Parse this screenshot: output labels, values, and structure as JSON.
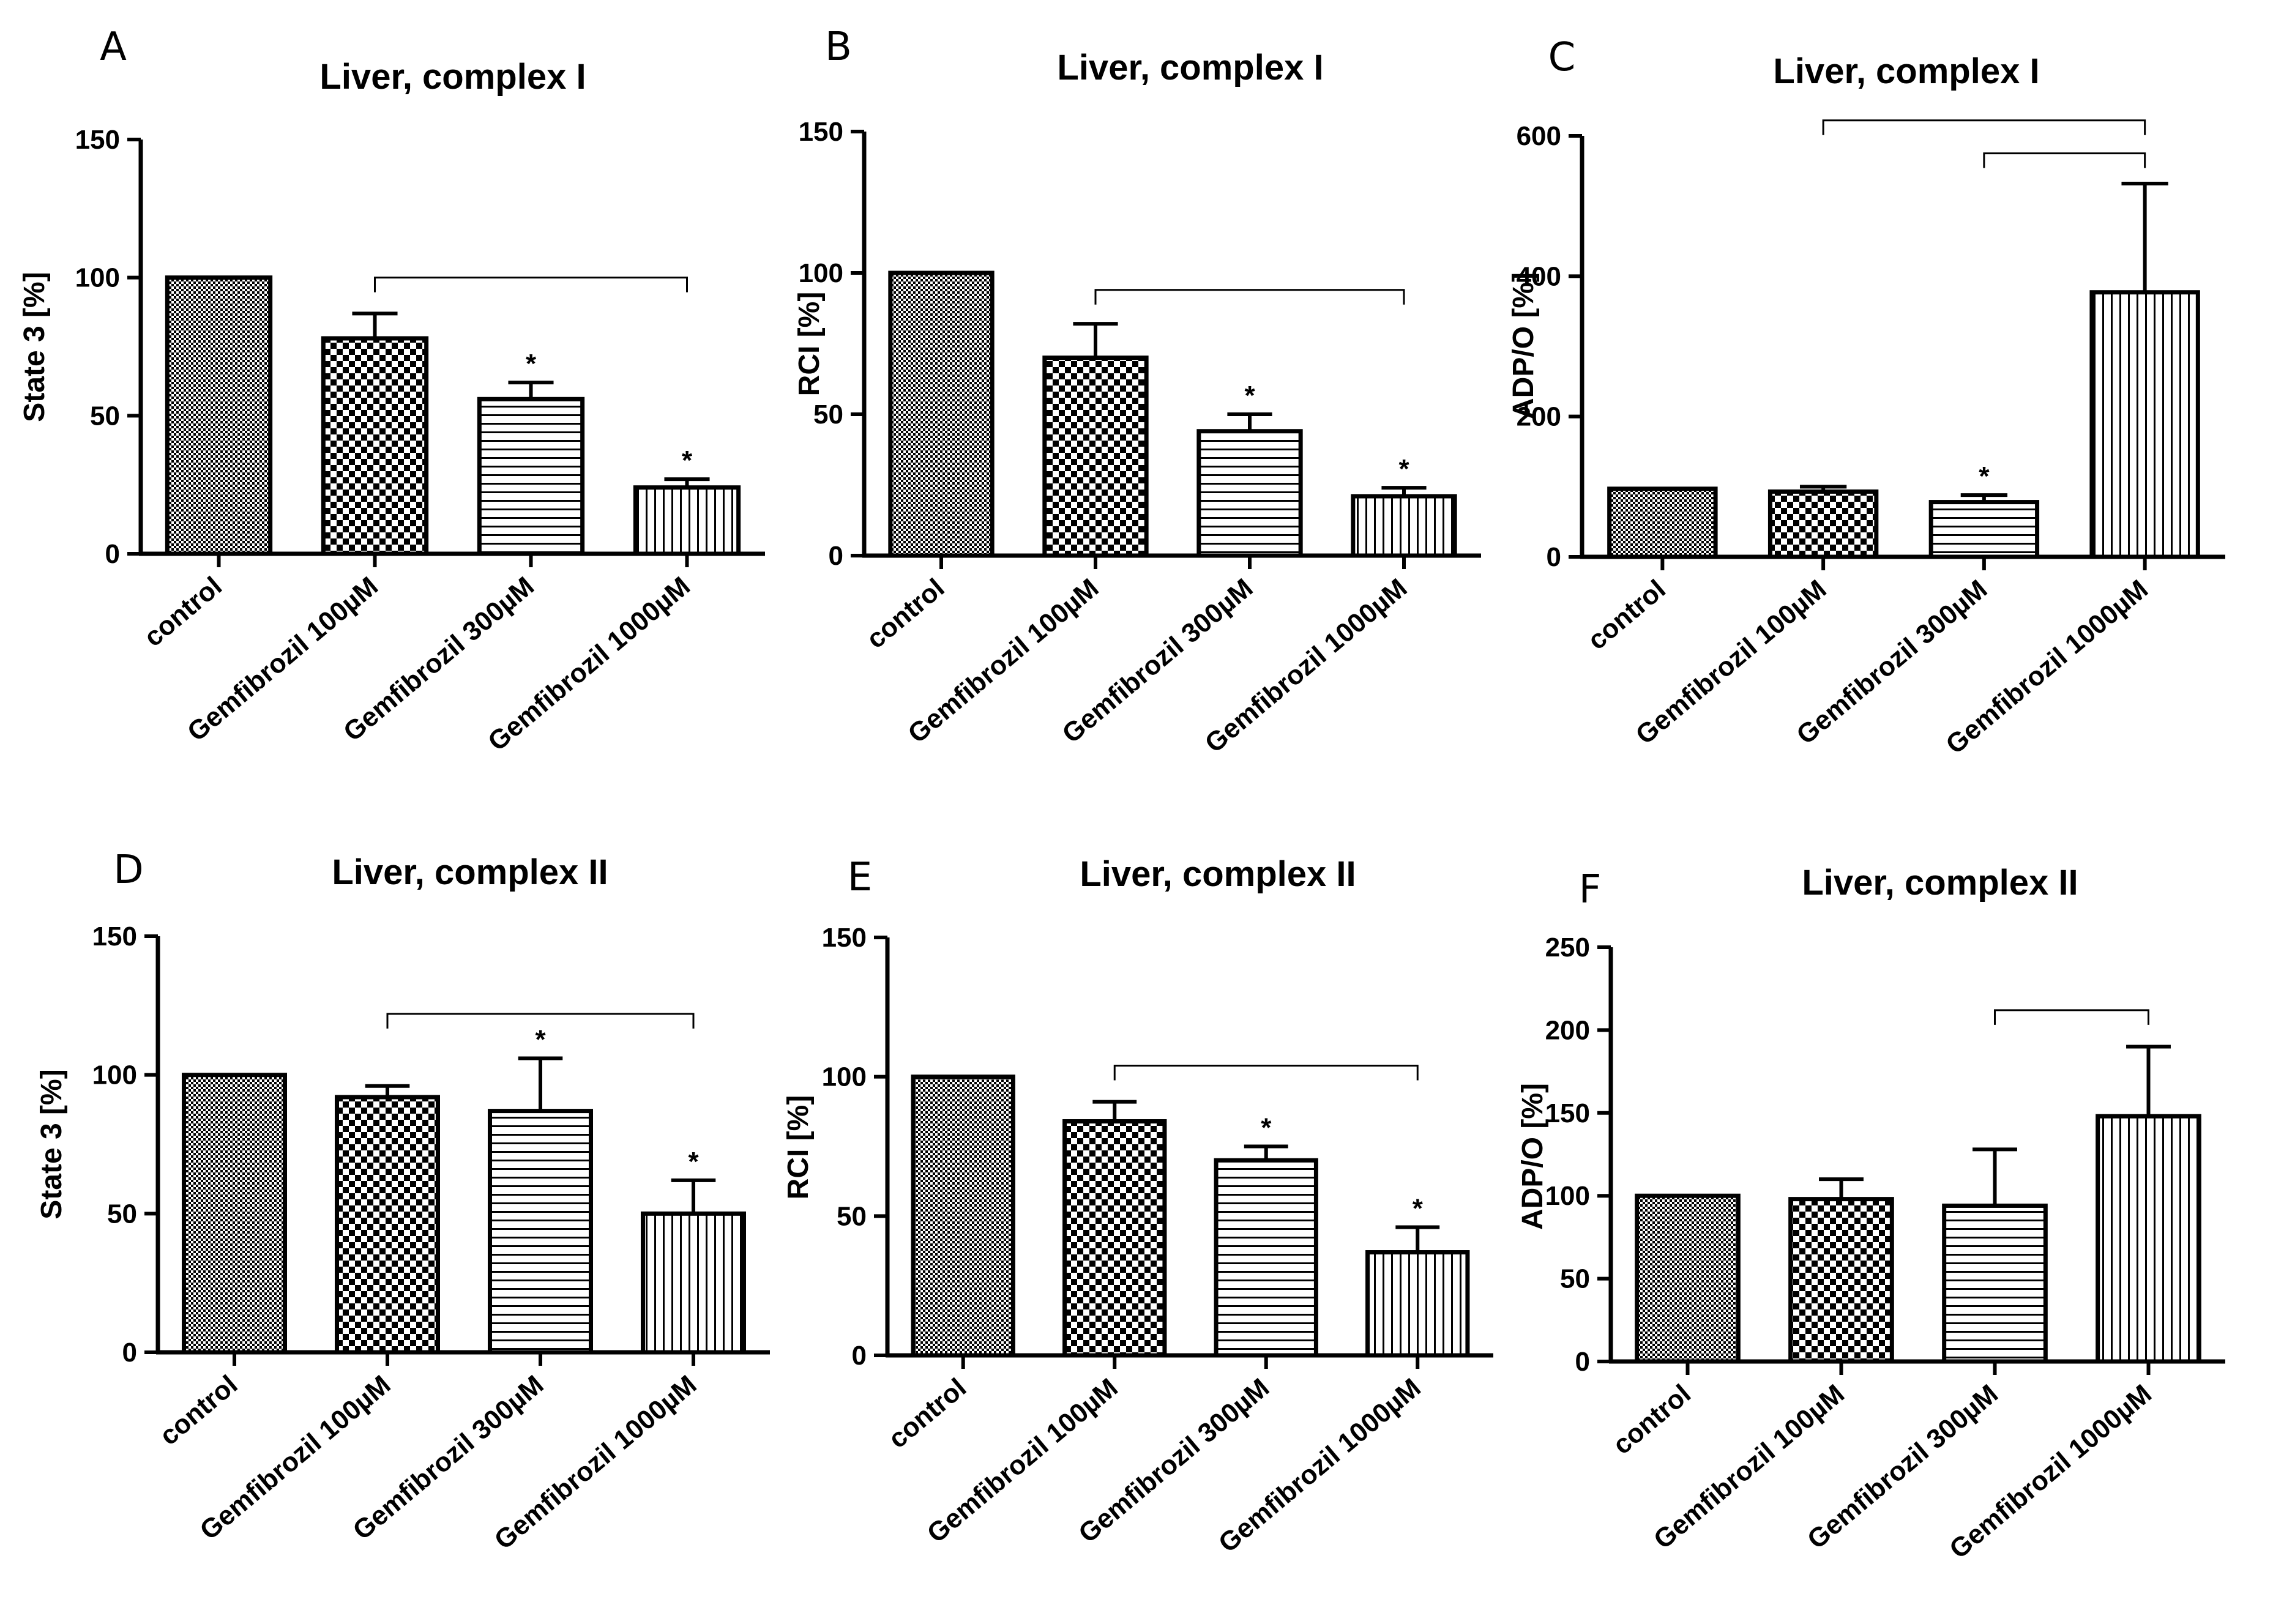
{
  "chart_data": [
    {
      "panel": "A",
      "type": "bar",
      "title": "Liver, complex I",
      "xlabel": "",
      "ylabel": "State 3 [%]",
      "ylim": [
        0,
        150
      ],
      "yticks": [
        0,
        50,
        100,
        150
      ],
      "categories": [
        "control",
        "Gemfibrozil 100µM",
        "Gemfibrozil 300µM",
        "Gemfibrozil 1000µM"
      ],
      "values": [
        100,
        78,
        56,
        24
      ],
      "errors": [
        0,
        9,
        6,
        3
      ],
      "significance": [
        "",
        "",
        "*",
        "*"
      ],
      "brackets": [
        {
          "from": 1,
          "to": 3,
          "y": 100
        }
      ],
      "patterns": [
        "fine-check",
        "check",
        "horizontal-lines",
        "vertical-lines"
      ]
    },
    {
      "panel": "B",
      "type": "bar",
      "title": "Liver, complex I",
      "xlabel": "",
      "ylabel": "RCI [%]",
      "ylim": [
        0,
        150
      ],
      "yticks": [
        0,
        50,
        100,
        150
      ],
      "categories": [
        "control",
        "Gemfibrozil 100µM",
        "Gemfibrozil 300µM",
        "Gemfibrozil 1000µM"
      ],
      "values": [
        100,
        70,
        44,
        21
      ],
      "errors": [
        0,
        12,
        6,
        3
      ],
      "significance": [
        "",
        "",
        "*",
        "*"
      ],
      "brackets": [
        {
          "from": 1,
          "to": 3,
          "y": 94
        }
      ],
      "patterns": [
        "fine-check",
        "check",
        "horizontal-lines",
        "vertical-lines"
      ]
    },
    {
      "panel": "C",
      "type": "bar",
      "title": "Liver, complex I",
      "xlabel": "",
      "ylabel": "ADP/O    [%]",
      "ylim": [
        0,
        600
      ],
      "yticks": [
        0,
        200,
        400,
        600
      ],
      "categories": [
        "control",
        "Gemfibrozil 100µM",
        "Gemfibrozil 300µM",
        "Gemfibrozil 1000µM"
      ],
      "values": [
        97,
        93,
        78,
        377
      ],
      "errors": [
        0,
        7,
        10,
        155
      ],
      "significance": [
        "",
        "",
        "*",
        ""
      ],
      "brackets": [
        {
          "from": 1,
          "to": 3,
          "y": 622
        },
        {
          "from": 2,
          "to": 3,
          "y": 575
        }
      ],
      "patterns": [
        "fine-check",
        "check",
        "horizontal-lines",
        "vertical-lines"
      ]
    },
    {
      "panel": "D",
      "type": "bar",
      "title": "Liver, complex II",
      "xlabel": "",
      "ylabel": "State 3 [%]",
      "ylim": [
        0,
        150
      ],
      "yticks": [
        0,
        50,
        100,
        150
      ],
      "categories": [
        "control",
        "Gemfibrozil 100µM",
        "Gemfibrozil 300µM",
        "Gemfibrozil 1000µM"
      ],
      "values": [
        100,
        92,
        87,
        50
      ],
      "errors": [
        0,
        4,
        19,
        12
      ],
      "significance": [
        "",
        "",
        "*",
        "*"
      ],
      "brackets": [
        {
          "from": 1,
          "to": 3,
          "y": 122
        }
      ],
      "patterns": [
        "fine-check",
        "check",
        "horizontal-lines",
        "vertical-lines"
      ]
    },
    {
      "panel": "E",
      "type": "bar",
      "title": "Liver, complex II",
      "xlabel": "",
      "ylabel": "RCI   [%]",
      "ylim": [
        0,
        150
      ],
      "yticks": [
        0,
        50,
        100,
        150
      ],
      "categories": [
        "control",
        "Gemfibrozil 100µM",
        "Gemfibrozil 300µM",
        "Gemfibrozil 1000µM"
      ],
      "values": [
        100,
        84,
        70,
        37
      ],
      "errors": [
        0,
        7,
        5,
        9
      ],
      "significance": [
        "",
        "",
        "*",
        "*"
      ],
      "brackets": [
        {
          "from": 1,
          "to": 3,
          "y": 104
        }
      ],
      "patterns": [
        "fine-check",
        "check",
        "horizontal-lines",
        "vertical-lines"
      ]
    },
    {
      "panel": "F",
      "type": "bar",
      "title": "Liver, complex II",
      "xlabel": "",
      "ylabel": "ADP/O    [%]",
      "ylim": [
        0,
        250
      ],
      "yticks": [
        0,
        50,
        100,
        150,
        200,
        250
      ],
      "categories": [
        "control",
        "Gemfibrozil 100µM",
        "Gemfibrozil 300µM",
        "Gemfibrozil 1000µM"
      ],
      "values": [
        100,
        98,
        94,
        148
      ],
      "errors": [
        0,
        12,
        34,
        42
      ],
      "significance": [
        "",
        "",
        "",
        ""
      ],
      "brackets": [
        {
          "from": 2,
          "to": 3,
          "y": 212
        }
      ],
      "patterns": [
        "fine-check",
        "check",
        "horizontal-lines",
        "vertical-lines"
      ]
    }
  ]
}
